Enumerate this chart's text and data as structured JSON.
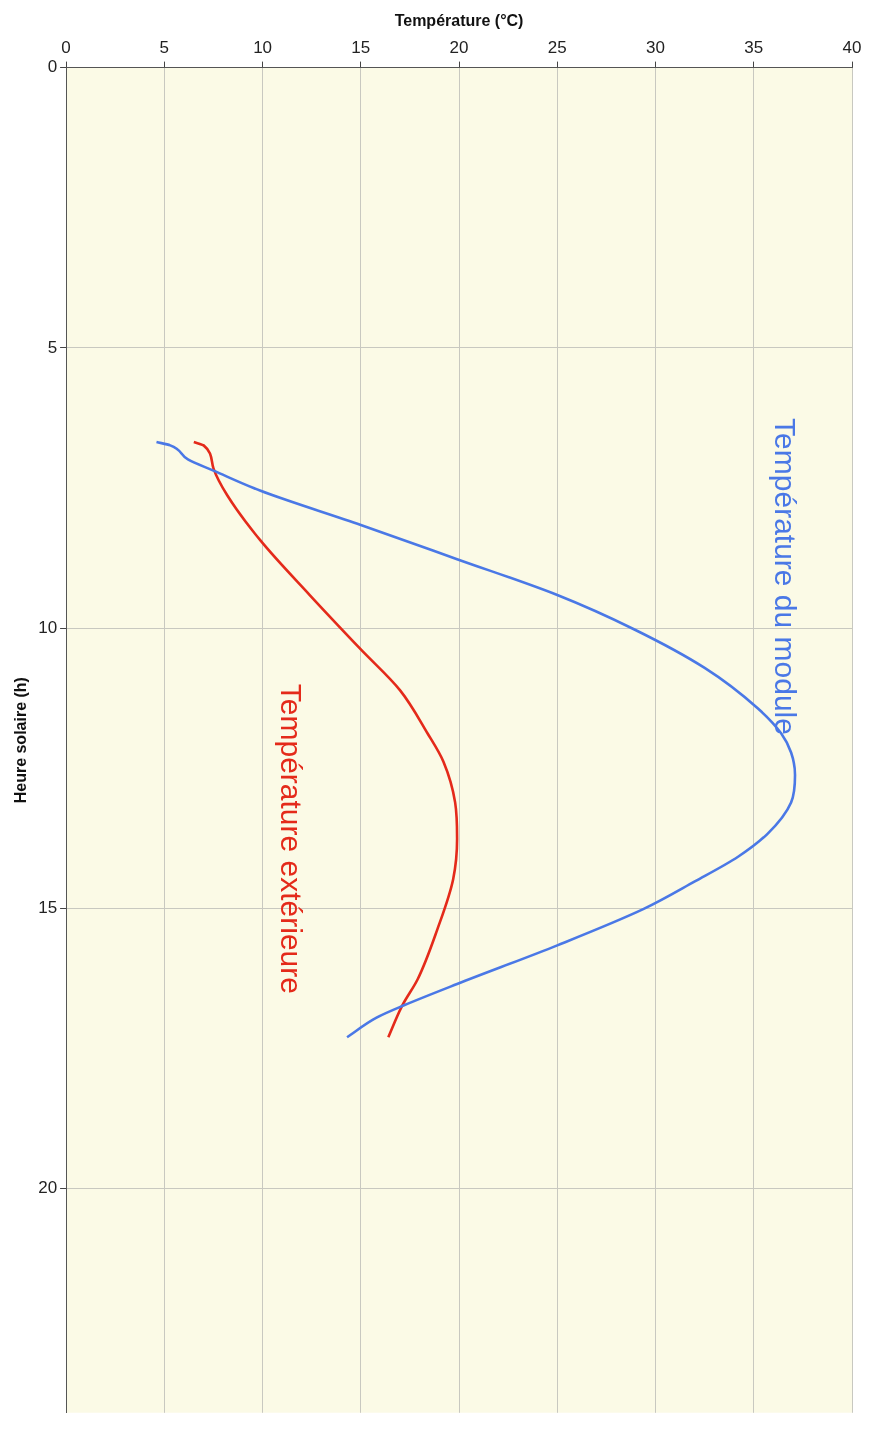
{
  "chart_data": {
    "type": "line",
    "orientation": "horizontal",
    "xlabel": "Température (°C)",
    "ylabel": "Heure solaire (h)",
    "xlim": [
      0,
      40
    ],
    "xticks": [
      0,
      5,
      10,
      15,
      20,
      25,
      30,
      35,
      40
    ],
    "ylim": [
      24,
      0
    ],
    "yticks": [
      0,
      5,
      10,
      15,
      20
    ],
    "grid": true,
    "legend": false,
    "marker": "none",
    "line_style": "solid",
    "series": [
      {
        "name": "Température du module",
        "color": "#4a78e6",
        "x": [
          6.68,
          6.74,
          6.99,
          7.19,
          7.55,
          8.16,
          8.77,
          9.41,
          10.02,
          10.71,
          11.43,
          11.88,
          12.22,
          12.62,
          13.11,
          13.67,
          14.08,
          14.52,
          15.01,
          15.66,
          16.35,
          16.73,
          16.95,
          17.3
        ],
        "values": [
          4.6,
          5.3,
          6.2,
          7.5,
          9.9,
          15.0,
          19.9,
          25.0,
          28.9,
          32.5,
          35.2,
          36.4,
          36.9,
          37.1,
          36.9,
          35.7,
          34.2,
          32.0,
          29.4,
          25.0,
          19.9,
          17.2,
          15.8,
          14.3
        ]
      },
      {
        "name": "Température extérieure",
        "color": "#e42a1a",
        "x": [
          6.68,
          6.74,
          7.15,
          7.63,
          8.44,
          9.41,
          10.38,
          11.11,
          11.88,
          12.38,
          13.11,
          13.76,
          14.48,
          15.37,
          16.26,
          16.74,
          17.3
        ],
        "values": [
          6.5,
          7.0,
          7.5,
          8.2,
          9.9,
          12.4,
          15.0,
          17.0,
          18.4,
          19.2,
          19.8,
          19.9,
          19.7,
          18.9,
          17.9,
          17.1,
          16.4
        ]
      }
    ]
  }
}
